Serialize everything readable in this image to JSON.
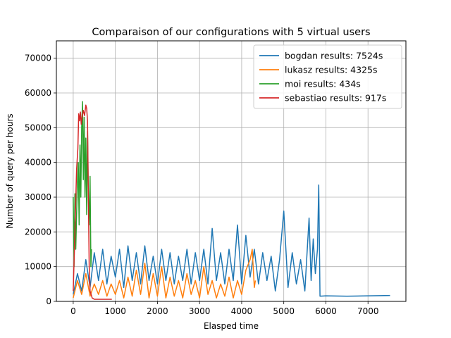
{
  "chart_data": {
    "type": "line",
    "title": "Comparaison of our configurations with 5 virtual users",
    "xlabel": "Elasped time",
    "ylabel": "Number of query per hours",
    "xlim": [
      -400,
      7900
    ],
    "ylim": [
      0,
      75000
    ],
    "xticks": [
      0,
      1000,
      2000,
      3000,
      4000,
      5000,
      6000,
      7000
    ],
    "yticks": [
      0,
      10000,
      20000,
      30000,
      40000,
      50000,
      60000,
      70000
    ],
    "grid": true,
    "legend_position": "upper right",
    "series": [
      {
        "name": "bogdan results: 7524s",
        "color": "#1f77b4",
        "duration": 7524,
        "points": [
          [
            0,
            2000
          ],
          [
            100,
            8000
          ],
          [
            200,
            3000
          ],
          [
            300,
            12000
          ],
          [
            400,
            4000
          ],
          [
            500,
            14000
          ],
          [
            600,
            6000
          ],
          [
            700,
            15000
          ],
          [
            800,
            5000
          ],
          [
            900,
            13000
          ],
          [
            1000,
            7000
          ],
          [
            1100,
            15000
          ],
          [
            1200,
            4000
          ],
          [
            1300,
            16000
          ],
          [
            1400,
            6000
          ],
          [
            1500,
            14000
          ],
          [
            1600,
            5000
          ],
          [
            1700,
            16000
          ],
          [
            1800,
            6000
          ],
          [
            1900,
            13000
          ],
          [
            2000,
            5000
          ],
          [
            2100,
            15000
          ],
          [
            2200,
            6000
          ],
          [
            2300,
            14000
          ],
          [
            2400,
            5000
          ],
          [
            2500,
            13000
          ],
          [
            2600,
            6000
          ],
          [
            2700,
            15000
          ],
          [
            2800,
            5000
          ],
          [
            2900,
            14000
          ],
          [
            3000,
            6000
          ],
          [
            3100,
            15000
          ],
          [
            3200,
            5000
          ],
          [
            3300,
            21000
          ],
          [
            3400,
            6000
          ],
          [
            3500,
            14000
          ],
          [
            3600,
            5000
          ],
          [
            3700,
            15000
          ],
          [
            3800,
            6000
          ],
          [
            3900,
            22000
          ],
          [
            4000,
            5000
          ],
          [
            4100,
            19000
          ],
          [
            4200,
            7000
          ],
          [
            4300,
            15000
          ],
          [
            4400,
            5000
          ],
          [
            4500,
            14000
          ],
          [
            4600,
            6000
          ],
          [
            4700,
            13000
          ],
          [
            4800,
            3000
          ],
          [
            4900,
            12000
          ],
          [
            5000,
            26000
          ],
          [
            5100,
            4000
          ],
          [
            5200,
            14000
          ],
          [
            5300,
            5000
          ],
          [
            5400,
            12000
          ],
          [
            5500,
            3000
          ],
          [
            5600,
            24000
          ],
          [
            5650,
            6000
          ],
          [
            5700,
            18000
          ],
          [
            5750,
            8000
          ],
          [
            5800,
            15000
          ],
          [
            5830,
            33500
          ],
          [
            5860,
            1500
          ],
          [
            6000,
            1600
          ],
          [
            6500,
            1500
          ],
          [
            7000,
            1600
          ],
          [
            7524,
            1700
          ]
        ]
      },
      {
        "name": "lukasz results: 4325s",
        "color": "#ff7f0e",
        "duration": 4325,
        "points": [
          [
            0,
            1000
          ],
          [
            100,
            6000
          ],
          [
            200,
            2000
          ],
          [
            300,
            8000
          ],
          [
            400,
            1500
          ],
          [
            500,
            5000
          ],
          [
            600,
            2000
          ],
          [
            700,
            6000
          ],
          [
            800,
            1500
          ],
          [
            900,
            5000
          ],
          [
            1000,
            2000
          ],
          [
            1100,
            6000
          ],
          [
            1200,
            1000
          ],
          [
            1300,
            7000
          ],
          [
            1400,
            1500
          ],
          [
            1500,
            9000
          ],
          [
            1600,
            2000
          ],
          [
            1700,
            11000
          ],
          [
            1800,
            1000
          ],
          [
            1900,
            8000
          ],
          [
            2000,
            1500
          ],
          [
            2100,
            10000
          ],
          [
            2200,
            1000
          ],
          [
            2300,
            7000
          ],
          [
            2400,
            1500
          ],
          [
            2500,
            6000
          ],
          [
            2600,
            1000
          ],
          [
            2700,
            8000
          ],
          [
            2800,
            2000
          ],
          [
            2900,
            6000
          ],
          [
            3000,
            1000
          ],
          [
            3100,
            10000
          ],
          [
            3200,
            2000
          ],
          [
            3300,
            6000
          ],
          [
            3400,
            1000
          ],
          [
            3500,
            5000
          ],
          [
            3600,
            1500
          ],
          [
            3700,
            7000
          ],
          [
            3800,
            1000
          ],
          [
            3900,
            6000
          ],
          [
            4000,
            2000
          ],
          [
            4100,
            9000
          ],
          [
            4200,
            12000
          ],
          [
            4250,
            15000
          ],
          [
            4300,
            4000
          ],
          [
            4325,
            6000
          ]
        ]
      },
      {
        "name": "moi results: 434s",
        "color": "#2ca02c",
        "duration": 434,
        "points": [
          [
            0,
            30000
          ],
          [
            20,
            10000
          ],
          [
            40,
            31000
          ],
          [
            60,
            15000
          ],
          [
            80,
            25000
          ],
          [
            100,
            34000
          ],
          [
            120,
            40000
          ],
          [
            140,
            22000
          ],
          [
            160,
            45000
          ],
          [
            180,
            30000
          ],
          [
            200,
            50000
          ],
          [
            220,
            57500
          ],
          [
            240,
            35000
          ],
          [
            260,
            53000
          ],
          [
            280,
            30000
          ],
          [
            300,
            47000
          ],
          [
            320,
            25000
          ],
          [
            340,
            49000
          ],
          [
            360,
            30000
          ],
          [
            380,
            22000
          ],
          [
            400,
            36000
          ],
          [
            420,
            10000
          ],
          [
            434,
            15000
          ]
        ]
      },
      {
        "name": "sebastiao results: 917s",
        "color": "#d62728",
        "duration": 917,
        "points": [
          [
            0,
            3000
          ],
          [
            40,
            20000
          ],
          [
            80,
            38000
          ],
          [
            110,
            44000
          ],
          [
            130,
            54000
          ],
          [
            150,
            52000
          ],
          [
            170,
            54500
          ],
          [
            190,
            51000
          ],
          [
            210,
            53000
          ],
          [
            240,
            55000
          ],
          [
            270,
            53500
          ],
          [
            300,
            56500
          ],
          [
            320,
            55500
          ],
          [
            340,
            52000
          ],
          [
            360,
            30000
          ],
          [
            380,
            10000
          ],
          [
            400,
            3000
          ],
          [
            450,
            1000
          ],
          [
            500,
            600
          ],
          [
            700,
            600
          ],
          [
            917,
            600
          ]
        ]
      }
    ]
  }
}
